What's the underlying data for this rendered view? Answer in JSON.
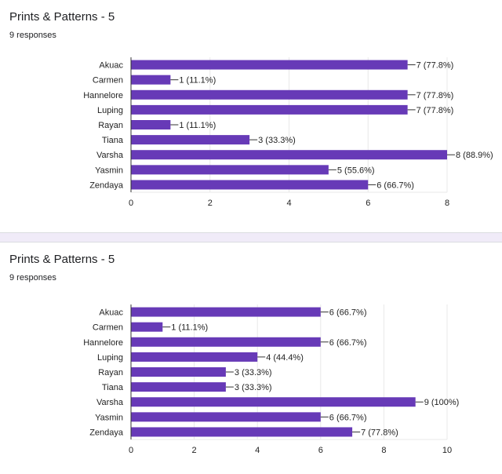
{
  "colors": {
    "bar": "#673ab7",
    "grid": "#e8e8e8",
    "axis": "#333333",
    "text": "#222222"
  },
  "chart_data": [
    {
      "type": "bar",
      "orientation": "horizontal",
      "title": "Prints & Patterns - 5",
      "subtitle": "9 responses",
      "categories": [
        "Akuac",
        "Carmen",
        "Hannelore",
        "Luping",
        "Rayan",
        "Tiana",
        "Varsha",
        "Yasmin",
        "Zendaya"
      ],
      "values": [
        7,
        1,
        7,
        7,
        1,
        3,
        8,
        5,
        6
      ],
      "value_labels": [
        "7 (77.8%)",
        "1 (11.1%)",
        "7 (77.8%)",
        "7 (77.8%)",
        "1 (11.1%)",
        "3 (33.3%)",
        "8 (88.9%)",
        "5 (55.6%)",
        "6 (66.7%)"
      ],
      "xlim": [
        0,
        8
      ],
      "xticks": [
        0,
        2,
        4,
        6,
        8
      ],
      "grid": true
    },
    {
      "type": "bar",
      "orientation": "horizontal",
      "title": "Prints & Patterns - 5",
      "subtitle": "9 responses",
      "categories": [
        "Akuac",
        "Carmen",
        "Hannelore",
        "Luping",
        "Rayan",
        "Tiana",
        "Varsha",
        "Yasmin",
        "Zendaya"
      ],
      "values": [
        6,
        1,
        6,
        4,
        3,
        3,
        9,
        6,
        7
      ],
      "value_labels": [
        "6 (66.7%)",
        "1 (11.1%)",
        "6 (66.7%)",
        "4 (44.4%)",
        "3 (33.3%)",
        "3 (33.3%)",
        "9 (100%)",
        "6 (66.7%)",
        "7 (77.8%)"
      ],
      "xlim": [
        0,
        10
      ],
      "xticks": [
        0,
        2,
        4,
        6,
        8,
        10
      ],
      "grid": true
    }
  ]
}
